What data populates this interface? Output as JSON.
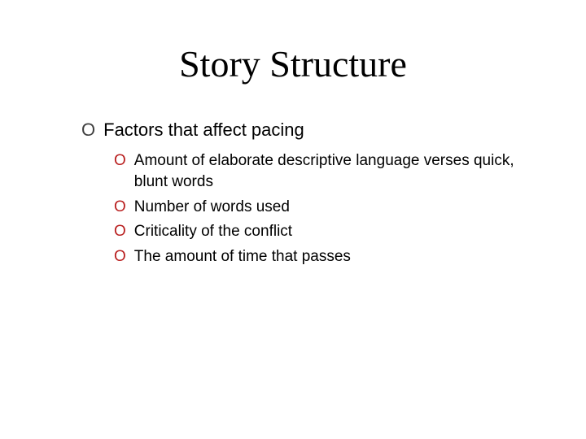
{
  "slide": {
    "title": "Story Structure",
    "title_font_family": "Times New Roman",
    "title_fontsize": 46,
    "title_color": "#000000",
    "background_color": "#ffffff",
    "bullet_marker": "O",
    "level1_marker_color": "#404040",
    "level2_marker_color": "#b92020",
    "level1_fontsize": 22,
    "level2_fontsize": 19,
    "body_font_family": "Arial",
    "items": [
      {
        "text": "Factors that affect pacing",
        "children": [
          {
            "text": "Amount of elaborate descriptive language verses quick, blunt words"
          },
          {
            "text": "Number of words used"
          },
          {
            "text": "Criticality of the conflict"
          },
          {
            "text": "The amount of time that passes"
          }
        ]
      }
    ]
  }
}
